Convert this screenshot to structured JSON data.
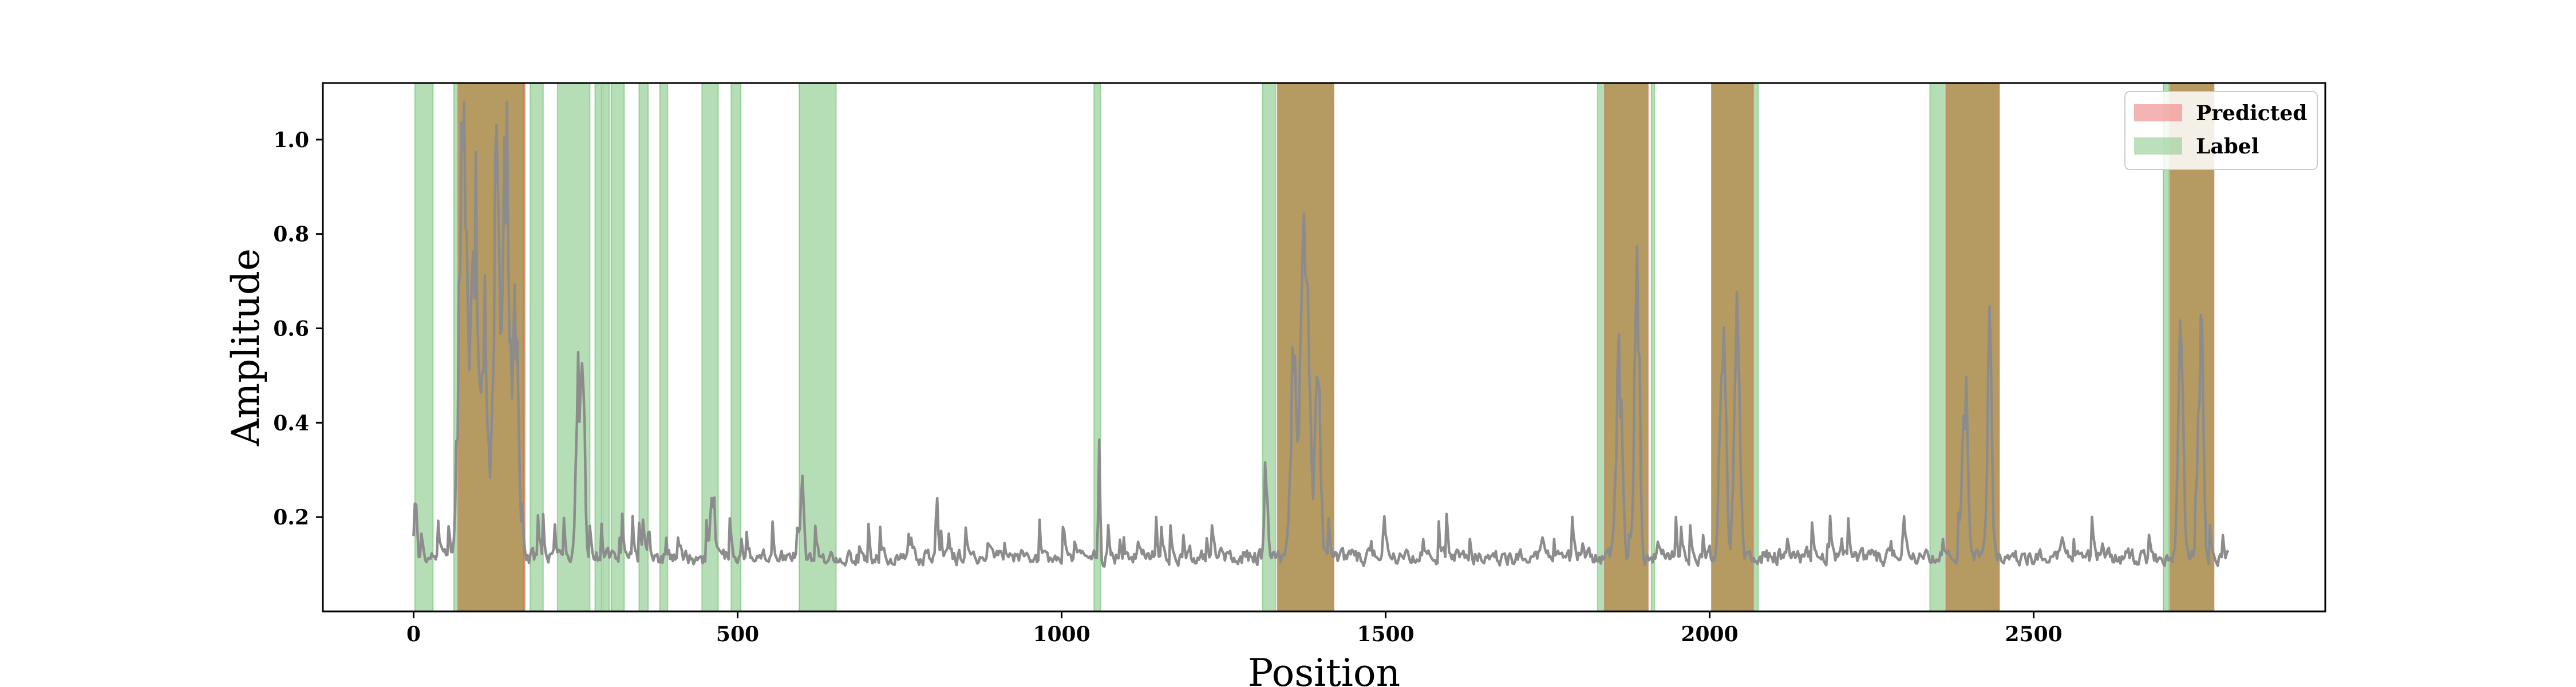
{
  "chart_data": {
    "type": "line",
    "title": "",
    "xlabel": "Position",
    "ylabel": "Amplitude",
    "xlim": [
      -140,
      2950
    ],
    "ylim": [
      0.0,
      1.12
    ],
    "x_ticks": [
      0,
      500,
      1000,
      1500,
      2000,
      2500
    ],
    "y_ticks": [
      0.2,
      0.4,
      0.6,
      0.8,
      1.0
    ],
    "y_tick_labels": [
      "0.2",
      "0.4",
      "0.6",
      "0.8",
      "1.0"
    ],
    "grid": false,
    "legend": {
      "placement": "top-right",
      "entries": [
        {
          "name": "Predicted",
          "color": "#f08080"
        },
        {
          "name": "Label",
          "color": "#8fcc8f"
        }
      ]
    },
    "colors": {
      "line": "#8c8c8c",
      "predicted_fill": "#f08080",
      "label_fill": "#8fcc8f"
    },
    "label_spans": [
      [
        2,
        30
      ],
      [
        62,
        170
      ],
      [
        180,
        200
      ],
      [
        222,
        272
      ],
      [
        280,
        290
      ],
      [
        292,
        302
      ],
      [
        305,
        325
      ],
      [
        348,
        362
      ],
      [
        380,
        392
      ],
      [
        445,
        470
      ],
      [
        490,
        505
      ],
      [
        595,
        652
      ],
      [
        1050,
        1060
      ],
      [
        1310,
        1330
      ],
      [
        1333,
        1420
      ],
      [
        1827,
        1838
      ],
      [
        1838,
        1905
      ],
      [
        1910,
        1915
      ],
      [
        2003,
        2067
      ],
      [
        2068,
        2075
      ],
      [
        2340,
        2365
      ],
      [
        2365,
        2447
      ],
      [
        2700,
        2708
      ],
      [
        2710,
        2778
      ]
    ],
    "predicted_spans": [
      [
        68,
        172
      ],
      [
        1333,
        1420
      ],
      [
        1838,
        1905
      ],
      [
        2003,
        2067
      ],
      [
        2365,
        2447
      ],
      [
        2710,
        2778
      ]
    ],
    "signal": {
      "name": "",
      "x_start": 0,
      "x_end": 2800,
      "peaks": [
        {
          "x": 3,
          "w": 3,
          "a": 0.12
        },
        {
          "x": 76,
          "w": 8,
          "a": 0.82
        },
        {
          "x": 94,
          "w": 8,
          "a": 0.7
        },
        {
          "x": 110,
          "w": 6,
          "a": 0.45
        },
        {
          "x": 128,
          "w": 7,
          "a": 0.75
        },
        {
          "x": 143,
          "w": 7,
          "a": 0.88
        },
        {
          "x": 158,
          "w": 6,
          "a": 0.55
        },
        {
          "x": 255,
          "w": 6,
          "a": 0.3
        },
        {
          "x": 262,
          "w": 4,
          "a": 0.28
        },
        {
          "x": 460,
          "w": 4,
          "a": 0.12
        },
        {
          "x": 600,
          "w": 4,
          "a": 0.12
        },
        {
          "x": 1058,
          "w": 2,
          "a": 0.22
        },
        {
          "x": 1315,
          "w": 3,
          "a": 0.18
        },
        {
          "x": 1358,
          "w": 6,
          "a": 0.4
        },
        {
          "x": 1375,
          "w": 8,
          "a": 0.72
        },
        {
          "x": 1395,
          "w": 5,
          "a": 0.45
        },
        {
          "x": 1860,
          "w": 6,
          "a": 0.42
        },
        {
          "x": 1888,
          "w": 5,
          "a": 0.65
        },
        {
          "x": 2020,
          "w": 6,
          "a": 0.5
        },
        {
          "x": 2043,
          "w": 5,
          "a": 0.6
        },
        {
          "x": 2394,
          "w": 6,
          "a": 0.3
        },
        {
          "x": 2432,
          "w": 5,
          "a": 0.4
        },
        {
          "x": 2727,
          "w": 5,
          "a": 0.55
        },
        {
          "x": 2758,
          "w": 5,
          "a": 0.5
        }
      ]
    }
  }
}
